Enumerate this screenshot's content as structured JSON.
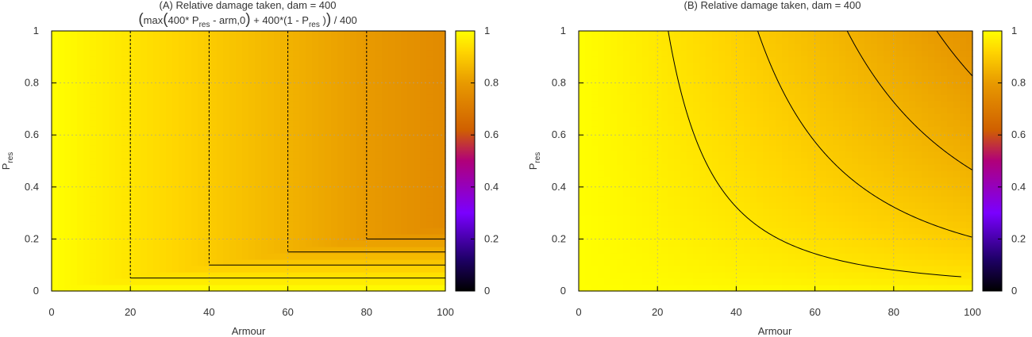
{
  "chart_data": [
    {
      "type": "heatmap",
      "panel": "A",
      "title": "(A) Relative damage taken, dam = 400",
      "formula": {
        "open": "(",
        "max": "max",
        "inner_open": "(",
        "p400": "400* P",
        "p_sub": "res",
        "arm": " - arm,0",
        "inner_close": ")",
        "plus": " + 400*(1 -  P",
        "plus_sub": "res",
        "plus_close": " )",
        "close": ")",
        "div": " / 400"
      },
      "function": "(max(dam*P - arm, 0) + dam*(1 - P)) / dam",
      "dam": 400,
      "xlabel": "Armour",
      "ylabel_main": "P",
      "ylabel_sub": "res",
      "xlim": [
        0,
        100
      ],
      "ylim": [
        0,
        1
      ],
      "xticks": [
        "0",
        "20",
        "40",
        "60",
        "80",
        "100"
      ],
      "yticks": [
        "0",
        "0.2",
        "0.4",
        "0.6",
        "0.8",
        "1"
      ],
      "contour_levels": [
        0.95,
        0.9,
        0.85,
        0.8
      ],
      "grid": true,
      "colorbar": {
        "range": [
          0,
          1
        ],
        "ticks": [
          "0",
          "0.2",
          "0.4",
          "0.6",
          "0.8",
          "1"
        ]
      }
    },
    {
      "type": "heatmap",
      "panel": "B",
      "title": "(B) Relative damage taken, dam = 400",
      "dam": 400,
      "xlabel": "Armour",
      "ylabel_main": "P",
      "ylabel_sub": "res",
      "xlim": [
        0,
        100
      ],
      "ylim": [
        0,
        1
      ],
      "xticks": [
        "0",
        "20",
        "40",
        "60",
        "80",
        "100"
      ],
      "yticks": [
        "0",
        "0.2",
        "0.4",
        "0.6",
        "0.8",
        "1"
      ],
      "contour_levels": [
        0.95,
        0.9,
        0.85,
        0.8,
        0.75
      ],
      "grid": true,
      "colorbar": {
        "range": [
          0,
          1
        ],
        "ticks": [
          "0",
          "0.2",
          "0.4",
          "0.6",
          "0.8",
          "1"
        ]
      }
    }
  ],
  "colors": {
    "palette_stops": [
      "#000000",
      "#1e0066",
      "#7a00ff",
      "#b0007a",
      "#d06000",
      "#e89a00",
      "#ffd500",
      "#ffff00"
    ],
    "contour": "#000000",
    "grid": "#a0a0a0",
    "text": "#333333"
  }
}
